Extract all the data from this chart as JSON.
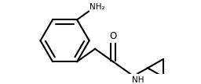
{
  "bg_color": "#ffffff",
  "line_color": "#000000",
  "line_width": 1.5,
  "font_size_label": 7.5,
  "NH2_label": "NH₂",
  "O_label": "O",
  "NH_label": "NH",
  "figsize": [
    2.56,
    1.08
  ],
  "dpi": 100
}
